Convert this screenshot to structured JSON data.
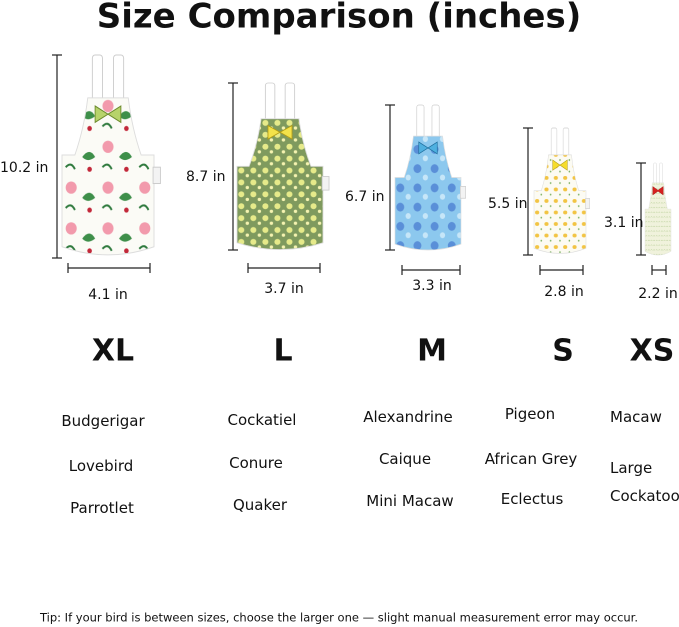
{
  "title": "Size Comparison (inches)",
  "sizes": [
    {
      "name": "XL",
      "height": "10.2 in",
      "width": "4.1 in",
      "birds": [
        "Budgerigar",
        "Lovebird",
        "Parrotlet"
      ]
    },
    {
      "name": "L",
      "height": "8.7 in",
      "width": "3.7 in",
      "birds": [
        "Cockatiel",
        "Conure",
        "Quaker"
      ]
    },
    {
      "name": "M",
      "height": "6.7 in",
      "width": "3.3 in",
      "birds": [
        "Alexandrine",
        "Caique",
        "Mini Macaw"
      ]
    },
    {
      "name": "S",
      "height": "5.5 in",
      "width": "2.8 in",
      "birds": [
        "Pigeon",
        "African Grey",
        "Eclectus"
      ]
    },
    {
      "name": "XS",
      "height": "3.1 in",
      "width": "2.2 in",
      "birds": [
        "Macaw",
        "Large Cockatoo"
      ]
    }
  ],
  "tip": "Tip: If your bird is between sizes, choose the larger one — slight manual measurement error may occur."
}
